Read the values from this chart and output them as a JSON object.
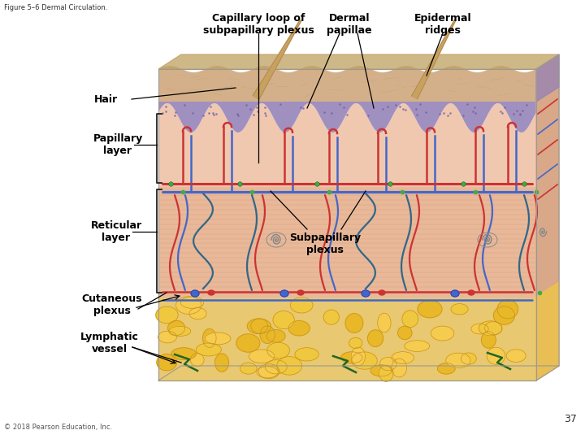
{
  "title": "Figure 5–6 Dermal Circulation.",
  "copyright": "© 2018 Pearson Education, Inc.",
  "page_number": "37",
  "bg": "#ffffff",
  "labels": {
    "capillary_loop": "Capillary loop of\nsubpapillary plexus",
    "dermal_papillae": "Dermal\npapillae",
    "epidermal_ridges": "Epidermal\nridges",
    "hair": "Hair",
    "papillary_layer": "Papillary\nlayer",
    "reticular_layer": "Reticular\nlayer",
    "subpapillary_plexus": "Subpapillary\nplexus",
    "cutaneous_plexus": "Cutaneous\nplexus",
    "lymphatic_vessel": "Lymphatic\nvessel"
  },
  "colors": {
    "epidermis_tan": "#d4b08a",
    "epidermis_dark": "#c4a070",
    "stratum_purple": "#a090c0",
    "papillary_pink": "#f0c8b0",
    "reticular_pink": "#e8b898",
    "reticular_line": "#c89878",
    "fat_bg": "#e8c870",
    "fat_glob1": "#f0c840",
    "fat_glob2": "#e8b828",
    "fat_glob3": "#f5cc50",
    "fat_outline": "#c89020",
    "right_face": "#d8a888",
    "right_face_purple": "#9080b8",
    "right_face_fat": "#e8c060",
    "top_face": "#c0a060",
    "box_outline": "#999999",
    "red_vessel": "#cc3333",
    "blue_vessel": "#4466cc",
    "dark_blue": "#2244aa",
    "teal_vessel": "#336688",
    "green_dot": "#44aa44",
    "dark_green": "#226622",
    "hair_tan": "#c8a060",
    "hair_edge": "#a08040",
    "grey_spiral": "#888888",
    "bracket": "#222222",
    "label_text": "#000000",
    "anno_line": "#000000",
    "title_text": "#333333",
    "copy_text": "#555555"
  }
}
